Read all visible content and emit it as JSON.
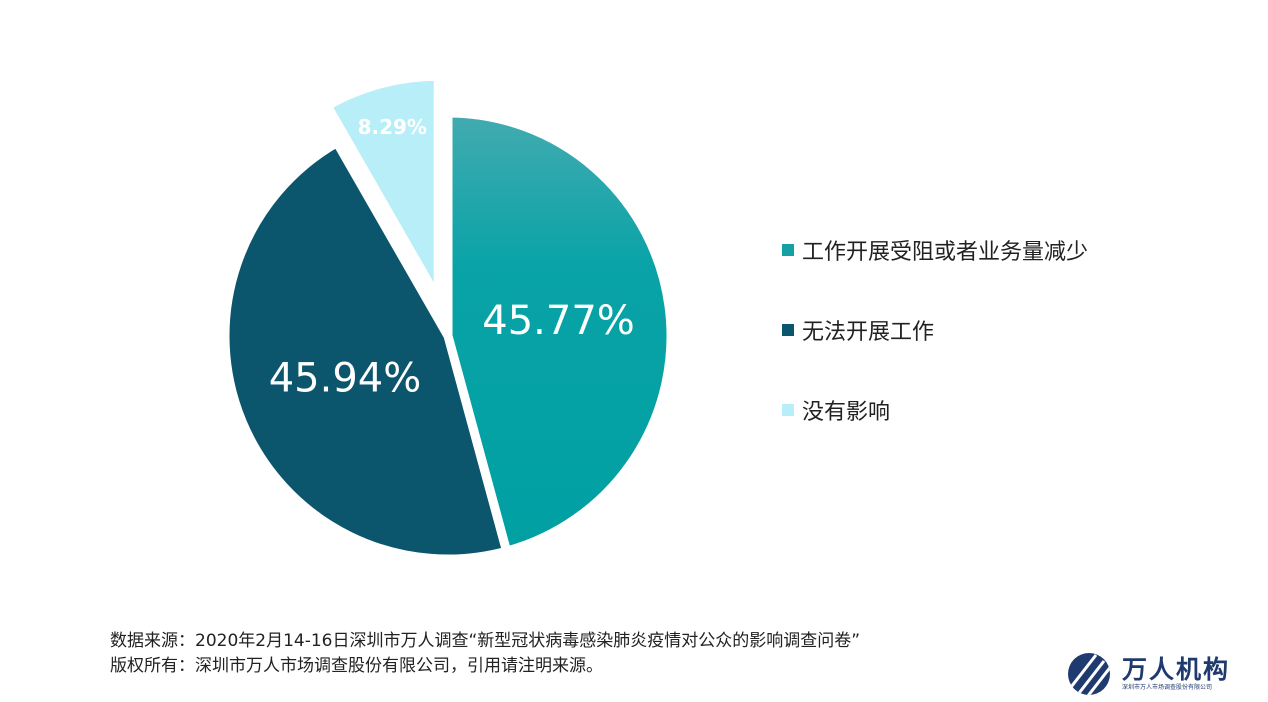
{
  "chart_data": {
    "type": "pie",
    "title": "",
    "slices": [
      {
        "label": "工作开展受阻或者业务量减少",
        "value": 45.77,
        "display": "45.77%",
        "color": "#07a3a6",
        "exploded": false
      },
      {
        "label": "无法开展工作",
        "value": 45.94,
        "display": "45.94%",
        "color": "#0b566d",
        "exploded": false
      },
      {
        "label": "没有影响",
        "value": 8.29,
        "display": "8.29%",
        "color": "#b8eef8",
        "exploded": true
      }
    ],
    "legend_position": "right"
  },
  "legend": {
    "items": [
      {
        "label": "工作开展受阻或者业务量减少",
        "color": "#13a0a6"
      },
      {
        "label": "无法开展工作",
        "color": "#0b566d"
      },
      {
        "label": "没有影响",
        "color": "#b8eef8"
      }
    ]
  },
  "footer": {
    "source": "数据来源：2020年2月14-16日深圳市万人调查“新型冠状病毒感染肺炎疫情对公众的影响调查问卷”",
    "copyright": "版权所有：深圳市万人市场调查股份有限公司，引用请注明来源。"
  },
  "logo": {
    "name": "万人机构",
    "subtitle": "深圳市万人市场调查股份有限公司",
    "icon": "stripe-circle-logo-icon"
  }
}
